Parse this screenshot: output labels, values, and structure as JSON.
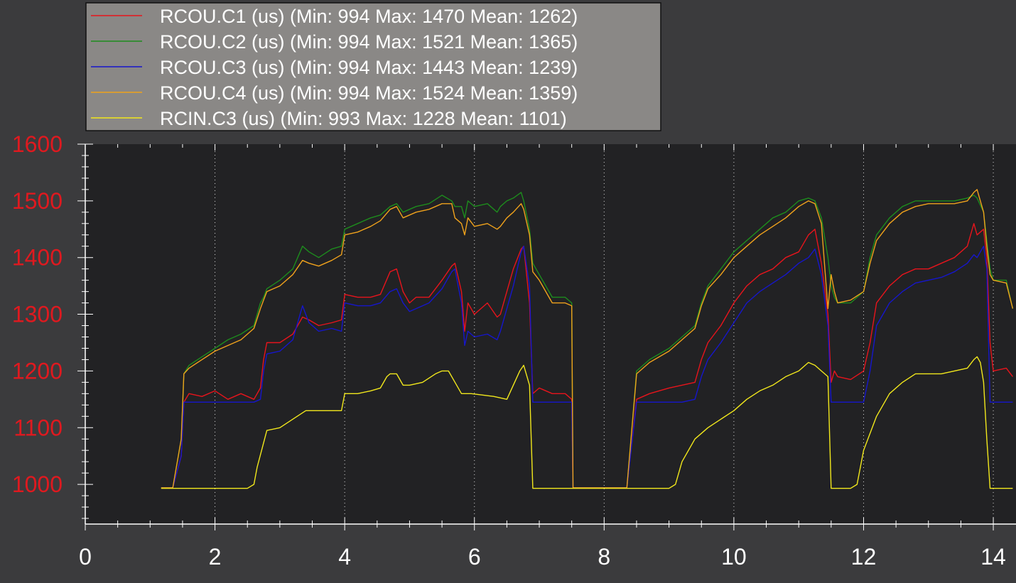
{
  "chart_data": {
    "type": "line",
    "title": "",
    "xlabel": "",
    "ylabel": "",
    "xlim": [
      0,
      14.35
    ],
    "ylim": [
      930,
      1600
    ],
    "x_ticks": [
      {
        "value": 0,
        "label": "0"
      },
      {
        "value": 2,
        "label": "2"
      },
      {
        "value": 4,
        "label": "4"
      },
      {
        "value": 6,
        "label": "6"
      },
      {
        "value": 8,
        "label": "8"
      },
      {
        "value": 10,
        "label": "10"
      },
      {
        "value": 12,
        "label": "12"
      },
      {
        "value": 14,
        "label": "14"
      }
    ],
    "y_ticks": [
      {
        "value": 1000,
        "label": "1000"
      },
      {
        "value": 1100,
        "label": "1100"
      },
      {
        "value": 1200,
        "label": "1200"
      },
      {
        "value": 1300,
        "label": "1300"
      },
      {
        "value": 1400,
        "label": "1400"
      },
      {
        "value": 1500,
        "label": "1500"
      },
      {
        "value": 1600,
        "label": "1600"
      }
    ],
    "grid": {
      "vertical": true,
      "horizontal": false
    },
    "legend_position": "top-left",
    "colors": {
      "page_bg": "#3b3b3d",
      "plot_bg": "#222224",
      "legend_bg": "#8a8886",
      "axis": "#ffffff",
      "y_tick_label": "#e0191f",
      "x_tick_label": "#ffffff"
    },
    "series": [
      {
        "name": "RCOU.C1 (us) (Min: 994 Max: 1470 Mean: 1262)",
        "color": "#e8141c",
        "x": [
          1.17,
          1.35,
          1.48,
          1.52,
          1.6,
          1.8,
          2.0,
          2.2,
          2.4,
          2.6,
          2.7,
          2.75,
          2.8,
          3.0,
          3.2,
          3.35,
          3.45,
          3.6,
          3.8,
          3.95,
          4.0,
          4.2,
          4.4,
          4.55,
          4.7,
          4.8,
          4.9,
          5.0,
          5.1,
          5.3,
          5.5,
          5.65,
          5.7,
          5.8,
          5.85,
          5.9,
          6.0,
          6.2,
          6.35,
          6.4,
          6.5,
          6.6,
          6.72,
          6.76,
          6.85,
          6.9,
          7.0,
          7.2,
          7.4,
          7.5,
          7.52,
          7.6,
          8.0,
          8.2,
          8.3,
          8.35,
          8.5,
          8.7,
          9.0,
          9.2,
          9.4,
          9.5,
          9.6,
          9.8,
          10.0,
          10.2,
          10.4,
          10.6,
          10.8,
          11.0,
          11.15,
          11.25,
          11.35,
          11.45,
          11.5,
          11.55,
          11.6,
          11.8,
          12.0,
          12.1,
          12.2,
          12.4,
          12.6,
          12.8,
          13.0,
          13.2,
          13.4,
          13.6,
          13.7,
          13.75,
          13.85,
          13.9,
          13.95,
          14.0,
          14.2,
          14.3
        ],
        "y": [
          994,
          994,
          1050,
          1145,
          1160,
          1155,
          1165,
          1150,
          1160,
          1150,
          1170,
          1220,
          1250,
          1250,
          1265,
          1295,
          1290,
          1280,
          1285,
          1290,
          1335,
          1330,
          1330,
          1335,
          1375,
          1380,
          1340,
          1320,
          1330,
          1330,
          1360,
          1385,
          1390,
          1340,
          1270,
          1320,
          1300,
          1320,
          1295,
          1300,
          1340,
          1380,
          1415,
          1420,
          1320,
          1160,
          1170,
          1160,
          1160,
          1150,
          994,
          994,
          994,
          994,
          994,
          994,
          1150,
          1160,
          1170,
          1175,
          1180,
          1220,
          1250,
          1280,
          1320,
          1350,
          1370,
          1380,
          1400,
          1410,
          1440,
          1450,
          1390,
          1300,
          1180,
          1200,
          1190,
          1185,
          1200,
          1250,
          1320,
          1350,
          1370,
          1380,
          1380,
          1390,
          1400,
          1420,
          1460,
          1440,
          1450,
          1400,
          1250,
          1200,
          1205,
          1190
        ]
      },
      {
        "name": "RCOU.C2 (us) (Min: 994 Max: 1521 Mean: 1365)",
        "color": "#1d8c1d",
        "x": [
          1.17,
          1.35,
          1.48,
          1.52,
          1.6,
          1.8,
          2.0,
          2.2,
          2.4,
          2.6,
          2.7,
          2.75,
          2.8,
          3.0,
          3.2,
          3.35,
          3.45,
          3.6,
          3.8,
          3.95,
          4.0,
          4.2,
          4.4,
          4.55,
          4.7,
          4.8,
          4.9,
          5.0,
          5.1,
          5.3,
          5.5,
          5.65,
          5.7,
          5.8,
          5.85,
          5.9,
          6.0,
          6.2,
          6.35,
          6.4,
          6.5,
          6.6,
          6.72,
          6.76,
          6.85,
          6.9,
          7.0,
          7.2,
          7.4,
          7.5,
          7.52,
          7.6,
          8.0,
          8.2,
          8.3,
          8.35,
          8.5,
          8.7,
          9.0,
          9.2,
          9.4,
          9.5,
          9.6,
          9.8,
          10.0,
          10.2,
          10.4,
          10.6,
          10.8,
          11.0,
          11.15,
          11.25,
          11.35,
          11.45,
          11.5,
          11.55,
          11.6,
          11.8,
          12.0,
          12.1,
          12.2,
          12.4,
          12.6,
          12.8,
          13.0,
          13.2,
          13.4,
          13.6,
          13.7,
          13.75,
          13.85,
          13.9,
          13.95,
          14.0,
          14.2,
          14.3
        ],
        "y": [
          994,
          994,
          1080,
          1195,
          1210,
          1225,
          1240,
          1255,
          1265,
          1280,
          1320,
          1330,
          1345,
          1360,
          1380,
          1420,
          1410,
          1400,
          1415,
          1420,
          1450,
          1460,
          1470,
          1475,
          1490,
          1495,
          1480,
          1485,
          1490,
          1495,
          1510,
          1500,
          1490,
          1490,
          1470,
          1500,
          1490,
          1495,
          1480,
          1490,
          1500,
          1505,
          1515,
          1500,
          1450,
          1390,
          1370,
          1330,
          1330,
          1320,
          994,
          994,
          994,
          994,
          994,
          994,
          1200,
          1220,
          1240,
          1260,
          1280,
          1320,
          1350,
          1380,
          1410,
          1430,
          1450,
          1470,
          1480,
          1500,
          1505,
          1500,
          1470,
          1400,
          1350,
          1330,
          1320,
          1320,
          1340,
          1400,
          1440,
          1470,
          1490,
          1500,
          1500,
          1500,
          1500,
          1505,
          1510,
          1505,
          1480,
          1430,
          1380,
          1360,
          1360,
          1310
        ]
      },
      {
        "name": "RCOU.C3 (us) (Min: 994 Max: 1443 Mean: 1239)",
        "color": "#1616cc",
        "x": [
          1.17,
          1.35,
          1.48,
          1.52,
          1.6,
          1.8,
          2.0,
          2.2,
          2.4,
          2.6,
          2.7,
          2.75,
          2.8,
          3.0,
          3.2,
          3.35,
          3.45,
          3.6,
          3.8,
          3.95,
          4.0,
          4.2,
          4.4,
          4.55,
          4.7,
          4.8,
          4.9,
          5.0,
          5.1,
          5.3,
          5.5,
          5.65,
          5.7,
          5.8,
          5.85,
          5.9,
          6.0,
          6.2,
          6.35,
          6.4,
          6.5,
          6.6,
          6.72,
          6.76,
          6.85,
          6.9,
          7.0,
          7.2,
          7.4,
          7.5,
          7.52,
          7.6,
          8.0,
          8.2,
          8.3,
          8.35,
          8.5,
          8.7,
          9.0,
          9.2,
          9.4,
          9.5,
          9.6,
          9.8,
          10.0,
          10.2,
          10.4,
          10.6,
          10.8,
          11.0,
          11.15,
          11.25,
          11.35,
          11.45,
          11.5,
          11.55,
          11.6,
          11.8,
          12.0,
          12.1,
          12.2,
          12.4,
          12.6,
          12.8,
          13.0,
          13.2,
          13.4,
          13.6,
          13.7,
          13.75,
          13.85,
          13.9,
          13.95,
          14.0,
          14.2,
          14.3
        ],
        "y": [
          994,
          994,
          1050,
          1145,
          1145,
          1145,
          1145,
          1145,
          1145,
          1145,
          1150,
          1200,
          1230,
          1235,
          1255,
          1315,
          1285,
          1270,
          1275,
          1270,
          1320,
          1315,
          1315,
          1320,
          1340,
          1345,
          1320,
          1305,
          1310,
          1320,
          1345,
          1375,
          1380,
          1320,
          1245,
          1270,
          1260,
          1265,
          1255,
          1270,
          1310,
          1350,
          1410,
          1420,
          1350,
          1145,
          1145,
          1145,
          1145,
          1145,
          994,
          994,
          994,
          994,
          994,
          994,
          1145,
          1145,
          1145,
          1145,
          1150,
          1190,
          1220,
          1250,
          1285,
          1320,
          1340,
          1355,
          1370,
          1390,
          1400,
          1415,
          1370,
          1280,
          1145,
          1145,
          1145,
          1145,
          1145,
          1200,
          1280,
          1320,
          1340,
          1355,
          1360,
          1365,
          1375,
          1390,
          1405,
          1400,
          1420,
          1380,
          1145,
          1145,
          1145,
          1145
        ]
      },
      {
        "name": "RCOU.C4 (us) (Min: 994 Max: 1524 Mean: 1359)",
        "color": "#f0a21c",
        "x": [
          1.17,
          1.35,
          1.48,
          1.52,
          1.6,
          1.8,
          2.0,
          2.2,
          2.4,
          2.6,
          2.7,
          2.75,
          2.8,
          3.0,
          3.2,
          3.35,
          3.45,
          3.6,
          3.8,
          3.95,
          4.0,
          4.2,
          4.4,
          4.55,
          4.7,
          4.8,
          4.9,
          5.0,
          5.1,
          5.3,
          5.5,
          5.65,
          5.7,
          5.8,
          5.85,
          5.9,
          6.0,
          6.2,
          6.35,
          6.4,
          6.5,
          6.6,
          6.72,
          6.76,
          6.85,
          6.9,
          7.0,
          7.2,
          7.4,
          7.5,
          7.52,
          7.6,
          8.0,
          8.2,
          8.3,
          8.35,
          8.5,
          8.7,
          9.0,
          9.2,
          9.4,
          9.5,
          9.6,
          9.8,
          10.0,
          10.2,
          10.4,
          10.6,
          10.8,
          11.0,
          11.15,
          11.25,
          11.35,
          11.45,
          11.5,
          11.55,
          11.6,
          11.8,
          12.0,
          12.1,
          12.2,
          12.4,
          12.6,
          12.8,
          13.0,
          13.2,
          13.4,
          13.6,
          13.7,
          13.75,
          13.85,
          13.9,
          13.95,
          14.0,
          14.2,
          14.3
        ],
        "y": [
          994,
          994,
          1080,
          1195,
          1205,
          1220,
          1235,
          1245,
          1255,
          1275,
          1310,
          1325,
          1340,
          1350,
          1370,
          1395,
          1390,
          1385,
          1395,
          1405,
          1440,
          1445,
          1455,
          1465,
          1485,
          1490,
          1470,
          1475,
          1480,
          1485,
          1495,
          1495,
          1470,
          1460,
          1440,
          1470,
          1455,
          1460,
          1450,
          1455,
          1470,
          1480,
          1495,
          1485,
          1440,
          1375,
          1360,
          1320,
          1320,
          1315,
          994,
          994,
          994,
          994,
          994,
          994,
          1195,
          1215,
          1235,
          1255,
          1275,
          1315,
          1345,
          1370,
          1400,
          1420,
          1440,
          1455,
          1470,
          1490,
          1500,
          1495,
          1460,
          1310,
          1370,
          1340,
          1320,
          1325,
          1340,
          1390,
          1430,
          1460,
          1480,
          1490,
          1495,
          1495,
          1495,
          1500,
          1515,
          1520,
          1480,
          1420,
          1370,
          1360,
          1355,
          1310
        ]
      },
      {
        "name": "RCIN.C3 (us) (Min: 993 Max: 1228 Mean: 1101)",
        "color": "#f2e81c",
        "x": [
          1.17,
          1.3,
          1.4,
          1.8,
          2.3,
          2.5,
          2.6,
          2.65,
          2.8,
          3.0,
          3.2,
          3.4,
          3.55,
          3.95,
          4.0,
          4.2,
          4.4,
          4.55,
          4.65,
          4.7,
          4.8,
          4.9,
          5.0,
          5.2,
          5.4,
          5.5,
          5.6,
          5.8,
          5.95,
          6.3,
          6.5,
          6.7,
          6.76,
          6.85,
          6.9,
          7.5,
          7.6,
          8.0,
          8.2,
          8.4,
          8.6,
          9.0,
          9.1,
          9.2,
          9.4,
          9.6,
          9.8,
          10.0,
          10.2,
          10.4,
          10.6,
          10.8,
          11.0,
          11.15,
          11.25,
          11.35,
          11.45,
          11.5,
          11.6,
          11.8,
          11.9,
          12.0,
          12.2,
          12.4,
          12.6,
          12.8,
          13.0,
          13.2,
          13.4,
          13.6,
          13.7,
          13.75,
          13.8,
          13.85,
          13.9,
          13.95,
          14.0,
          14.2,
          14.3
        ],
        "y": [
          993,
          993,
          993,
          993,
          993,
          993,
          1000,
          1030,
          1095,
          1100,
          1115,
          1130,
          1130,
          1130,
          1160,
          1160,
          1165,
          1170,
          1190,
          1195,
          1195,
          1175,
          1175,
          1180,
          1195,
          1200,
          1200,
          1160,
          1160,
          1155,
          1150,
          1200,
          1210,
          1175,
          993,
          993,
          993,
          993,
          993,
          993,
          993,
          993,
          1000,
          1040,
          1080,
          1100,
          1115,
          1130,
          1150,
          1165,
          1175,
          1190,
          1200,
          1215,
          1210,
          1200,
          1190,
          993,
          993,
          993,
          1000,
          1060,
          1120,
          1160,
          1180,
          1195,
          1195,
          1195,
          1200,
          1205,
          1220,
          1225,
          1215,
          1180,
          1080,
          993,
          993,
          993,
          993
        ]
      }
    ]
  }
}
